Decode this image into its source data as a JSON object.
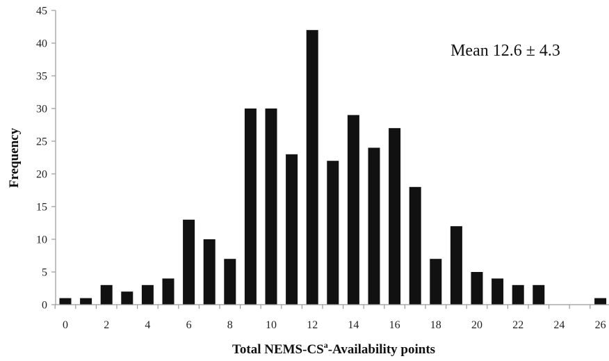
{
  "chart_data": {
    "type": "bar",
    "x": [
      0,
      1,
      2,
      3,
      4,
      5,
      6,
      7,
      8,
      9,
      10,
      11,
      12,
      13,
      14,
      15,
      16,
      17,
      18,
      19,
      20,
      21,
      22,
      23,
      24,
      25,
      26
    ],
    "values": [
      1,
      1,
      3,
      2,
      3,
      4,
      13,
      10,
      7,
      30,
      30,
      23,
      42,
      22,
      29,
      24,
      27,
      18,
      7,
      12,
      5,
      4,
      3,
      3,
      0,
      0,
      1
    ],
    "x_ticks": [
      0,
      2,
      4,
      6,
      8,
      10,
      12,
      14,
      16,
      18,
      20,
      22,
      24,
      26
    ],
    "y_ticks": [
      0,
      5,
      10,
      15,
      20,
      25,
      30,
      35,
      40,
      45
    ],
    "ylim": [
      0,
      45
    ],
    "xlim": [
      0,
      26
    ],
    "xlabel_main": "Total NEMS-CS",
    "xlabel_sup": "a",
    "xlabel_tail": "-Availability points",
    "ylabel": "Frequency",
    "annotation": "Mean 12.6 ± 4.3",
    "bar_color": "#111111",
    "axis_color": "#9a9a9a",
    "grid": false
  }
}
